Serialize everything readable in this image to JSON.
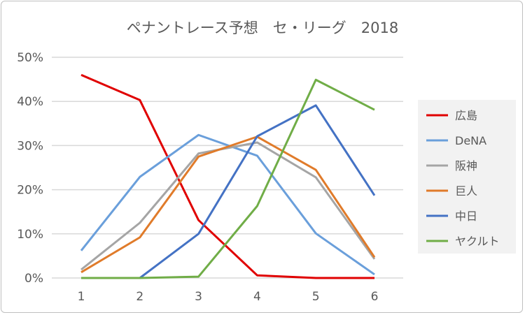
{
  "chart_data": {
    "type": "line",
    "title": "ペナントレース予想　セ・リーグ　2018",
    "xlabel": "",
    "ylabel": "",
    "categories": [
      "1",
      "2",
      "3",
      "4",
      "5",
      "6"
    ],
    "ylim": [
      0,
      50
    ],
    "yticks": [
      "0%",
      "10%",
      "20%",
      "30%",
      "40%",
      "50%"
    ],
    "grid": true,
    "legend": "right",
    "series": [
      {
        "name": "広島",
        "color": "#e00000",
        "values": [
          46.0,
          40.3,
          13.1,
          0.6,
          0.0,
          0.0
        ]
      },
      {
        "name": "DeNA",
        "color": "#6a9fdb",
        "values": [
          6.2,
          22.9,
          32.4,
          27.7,
          10.1,
          0.8
        ]
      },
      {
        "name": "阪神",
        "color": "#a5a5a5",
        "values": [
          1.9,
          12.5,
          28.2,
          30.7,
          22.8,
          4.3
        ]
      },
      {
        "name": "巨人",
        "color": "#e07b2a",
        "values": [
          1.3,
          9.2,
          27.5,
          32.0,
          24.5,
          4.7
        ]
      },
      {
        "name": "中日",
        "color": "#4472c4",
        "values": [
          0.0,
          0.0,
          10.0,
          32.1,
          39.1,
          18.7
        ]
      },
      {
        "name": "ヤクルト",
        "color": "#70ad47",
        "values": [
          0.0,
          0.0,
          0.3,
          16.3,
          44.9,
          38.1
        ]
      }
    ]
  }
}
